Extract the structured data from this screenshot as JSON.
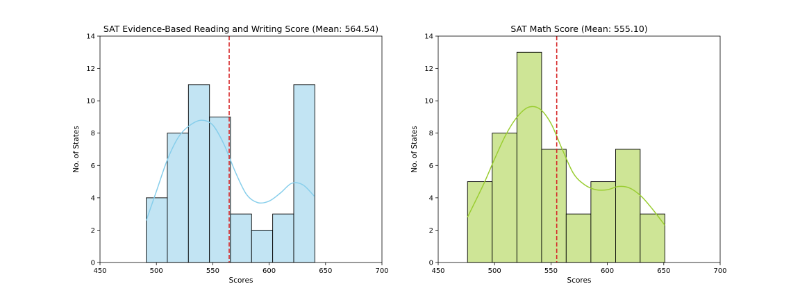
{
  "chart_data": [
    {
      "type": "histogram",
      "title": "SAT Evidence-Based Reading and Writing Score (Mean: 564.54)",
      "xlabel": "Scores",
      "ylabel": "No. of States",
      "xlim": [
        450,
        700
      ],
      "ylim": [
        0,
        14
      ],
      "xticks": [
        "450",
        "500",
        "550",
        "600",
        "650",
        "700"
      ],
      "yticks": [
        "0",
        "2",
        "4",
        "6",
        "8",
        "10",
        "12",
        "14"
      ],
      "bins": [
        {
          "x0": 491.0,
          "x1": 509.7,
          "count": 4
        },
        {
          "x0": 509.7,
          "x1": 528.4,
          "count": 8
        },
        {
          "x0": 528.4,
          "x1": 547.1,
          "count": 11
        },
        {
          "x0": 547.1,
          "x1": 565.7,
          "count": 9
        },
        {
          "x0": 565.7,
          "x1": 584.4,
          "count": 3
        },
        {
          "x0": 584.4,
          "x1": 603.1,
          "count": 2
        },
        {
          "x0": 603.1,
          "x1": 621.8,
          "count": 3
        },
        {
          "x0": 621.8,
          "x1": 640.5,
          "count": 11
        }
      ],
      "kde": [
        [
          491,
          2.6
        ],
        [
          500,
          4.4
        ],
        [
          510,
          6.4
        ],
        [
          520,
          7.8
        ],
        [
          530,
          8.5
        ],
        [
          540,
          8.8
        ],
        [
          550,
          8.5
        ],
        [
          560,
          7.3
        ],
        [
          570,
          5.6
        ],
        [
          580,
          4.2
        ],
        [
          590,
          3.7
        ],
        [
          600,
          3.8
        ],
        [
          610,
          4.3
        ],
        [
          620,
          4.9
        ],
        [
          630,
          4.8
        ],
        [
          640,
          4.1
        ]
      ],
      "mean": 564.54,
      "bar_color": "#c2e4f3",
      "line_color": "#87ceeb",
      "mean_line_color": "#d62728",
      "grid": false
    },
    {
      "type": "histogram",
      "title": "SAT Math Score (Mean: 555.10)",
      "xlabel": "Scores",
      "ylabel": "No. of States",
      "xlim": [
        450,
        700
      ],
      "ylim": [
        0,
        14
      ],
      "xticks": [
        "450",
        "500",
        "550",
        "600",
        "650",
        "700"
      ],
      "yticks": [
        "0",
        "2",
        "4",
        "6",
        "8",
        "10",
        "12",
        "14"
      ],
      "bins": [
        {
          "x0": 476.0,
          "x1": 497.9,
          "count": 5
        },
        {
          "x0": 497.9,
          "x1": 519.8,
          "count": 8
        },
        {
          "x0": 519.8,
          "x1": 541.7,
          "count": 13
        },
        {
          "x0": 541.7,
          "x1": 563.5,
          "count": 7
        },
        {
          "x0": 563.5,
          "x1": 585.4,
          "count": 3
        },
        {
          "x0": 585.4,
          "x1": 607.3,
          "count": 5
        },
        {
          "x0": 607.3,
          "x1": 629.1,
          "count": 7
        },
        {
          "x0": 629.1,
          "x1": 651.0,
          "count": 3
        }
      ],
      "kde": [
        [
          476,
          2.8
        ],
        [
          490,
          4.8
        ],
        [
          500,
          6.4
        ],
        [
          510,
          7.9
        ],
        [
          520,
          9.0
        ],
        [
          530,
          9.6
        ],
        [
          540,
          9.5
        ],
        [
          550,
          8.6
        ],
        [
          560,
          7.0
        ],
        [
          570,
          5.5
        ],
        [
          580,
          4.8
        ],
        [
          590,
          4.5
        ],
        [
          600,
          4.5
        ],
        [
          610,
          4.7
        ],
        [
          620,
          4.6
        ],
        [
          630,
          4.1
        ],
        [
          640,
          3.3
        ],
        [
          651,
          2.3
        ]
      ],
      "mean": 555.1,
      "bar_color": "#cee596",
      "line_color": "#9acd32",
      "mean_line_color": "#d62728",
      "grid": false
    }
  ]
}
